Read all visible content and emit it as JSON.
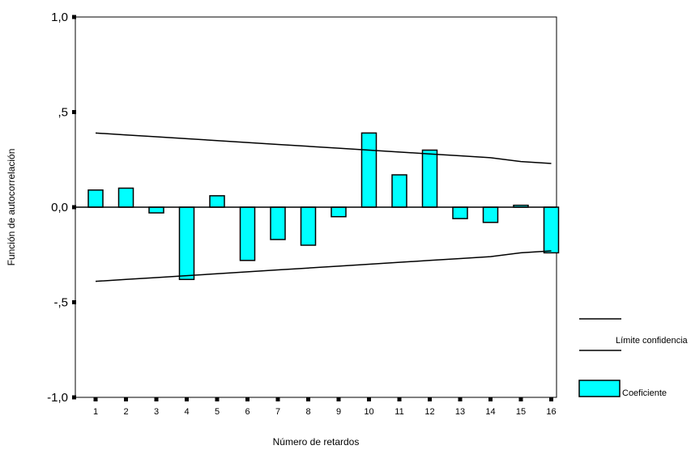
{
  "chart_data": {
    "type": "bar",
    "title": "",
    "xlabel": "Número de retardos",
    "ylabel": "Función de autocorrelación",
    "ylim": [
      -1.0,
      1.0
    ],
    "yticks": [
      {
        "value": 1.0,
        "label": "1,0"
      },
      {
        "value": 0.5,
        "label": ",5"
      },
      {
        "value": 0.0,
        "label": "0,0"
      },
      {
        "value": -0.5,
        "label": "-,5"
      },
      {
        "value": -1.0,
        "label": "-1,0"
      }
    ],
    "categories": [
      "1",
      "2",
      "3",
      "4",
      "5",
      "6",
      "7",
      "8",
      "9",
      "10",
      "11",
      "12",
      "13",
      "14",
      "15",
      "16"
    ],
    "series": [
      {
        "name": "Coeficiente",
        "kind": "bar",
        "color": "#00ffff",
        "values": [
          0.09,
          0.1,
          -0.03,
          -0.38,
          0.06,
          -0.28,
          -0.17,
          -0.2,
          -0.05,
          0.39,
          0.17,
          0.3,
          -0.06,
          -0.08,
          0.01,
          -0.24
        ]
      },
      {
        "name": "Límite confidencia",
        "kind": "line",
        "color": "#000000",
        "upper": [
          0.39,
          0.38,
          0.37,
          0.36,
          0.35,
          0.34,
          0.33,
          0.32,
          0.31,
          0.3,
          0.29,
          0.28,
          0.27,
          0.26,
          0.24,
          0.23
        ],
        "lower": [
          -0.39,
          -0.38,
          -0.37,
          -0.36,
          -0.35,
          -0.34,
          -0.33,
          -0.32,
          -0.31,
          -0.3,
          -0.29,
          -0.28,
          -0.27,
          -0.26,
          -0.24,
          -0.23
        ]
      }
    ],
    "legend": {
      "position": "right",
      "items": [
        {
          "label": "Límite confidencia",
          "kind": "line"
        },
        {
          "label": "Coeficiente",
          "kind": "bar"
        }
      ]
    },
    "grid": false
  }
}
